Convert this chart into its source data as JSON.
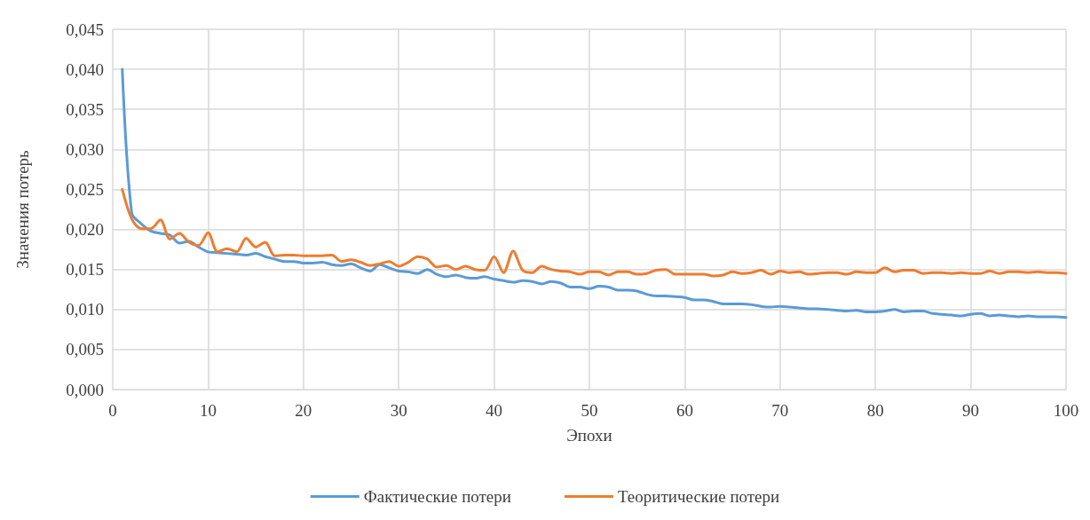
{
  "chart_data": {
    "type": "line",
    "xlabel": "Эпохи",
    "ylabel": "Значения потерь",
    "x": [
      1,
      2,
      3,
      4,
      5,
      6,
      7,
      8,
      9,
      10,
      11,
      12,
      13,
      14,
      15,
      16,
      17,
      18,
      19,
      20,
      21,
      22,
      23,
      24,
      25,
      26,
      27,
      28,
      29,
      30,
      31,
      32,
      33,
      34,
      35,
      36,
      37,
      38,
      39,
      40,
      41,
      42,
      43,
      44,
      45,
      46,
      47,
      48,
      49,
      50,
      51,
      52,
      53,
      54,
      55,
      56,
      57,
      58,
      59,
      60,
      61,
      62,
      63,
      64,
      65,
      66,
      67,
      68,
      69,
      70,
      71,
      72,
      73,
      74,
      75,
      76,
      77,
      78,
      79,
      80,
      81,
      82,
      83,
      84,
      85,
      86,
      87,
      88,
      89,
      90,
      91,
      92,
      93,
      94,
      95,
      96,
      97,
      98,
      99,
      100
    ],
    "series": [
      {
        "name": "Фактические потери",
        "color": "#5b9bd5",
        "values": [
          0.04,
          0.022,
          0.0207,
          0.0198,
          0.0195,
          0.0193,
          0.0183,
          0.0185,
          0.0178,
          0.0172,
          0.0171,
          0.017,
          0.0169,
          0.0168,
          0.017,
          0.0166,
          0.0163,
          0.016,
          0.016,
          0.0158,
          0.0158,
          0.0159,
          0.0156,
          0.0155,
          0.0157,
          0.0152,
          0.0148,
          0.0156,
          0.0152,
          0.0148,
          0.0147,
          0.0145,
          0.015,
          0.0144,
          0.0141,
          0.0143,
          0.014,
          0.0139,
          0.0141,
          0.0138,
          0.0136,
          0.0134,
          0.0136,
          0.0135,
          0.0132,
          0.0135,
          0.0133,
          0.0128,
          0.0128,
          0.0126,
          0.0129,
          0.0128,
          0.0124,
          0.0124,
          0.0123,
          0.0119,
          0.0117,
          0.0117,
          0.0116,
          0.0115,
          0.0112,
          0.0112,
          0.011,
          0.0107,
          0.0107,
          0.0107,
          0.0106,
          0.0104,
          0.0103,
          0.0104,
          0.0103,
          0.0102,
          0.0101,
          0.0101,
          0.01,
          0.0099,
          0.0098,
          0.0099,
          0.0097,
          0.0097,
          0.0098,
          0.01,
          0.0097,
          0.0098,
          0.0098,
          0.0095,
          0.0094,
          0.0093,
          0.0092,
          0.0094,
          0.0095,
          0.0092,
          0.0093,
          0.0092,
          0.0091,
          0.0092,
          0.0091,
          0.0091,
          0.0091,
          0.009
        ]
      },
      {
        "name": "Теоритические потери",
        "color": "#ed7d31",
        "values": [
          0.025,
          0.0213,
          0.0201,
          0.0201,
          0.0212,
          0.0188,
          0.0195,
          0.0184,
          0.018,
          0.0196,
          0.0172,
          0.0176,
          0.0172,
          0.0189,
          0.0178,
          0.0184,
          0.0167,
          0.0168,
          0.0168,
          0.0167,
          0.0167,
          0.0167,
          0.0168,
          0.016,
          0.0162,
          0.0159,
          0.0155,
          0.0157,
          0.016,
          0.0154,
          0.0159,
          0.0166,
          0.0163,
          0.0153,
          0.0155,
          0.015,
          0.0154,
          0.015,
          0.0149,
          0.0166,
          0.0146,
          0.0173,
          0.0149,
          0.0146,
          0.0154,
          0.015,
          0.0148,
          0.0147,
          0.0144,
          0.0147,
          0.0147,
          0.0143,
          0.0147,
          0.0147,
          0.0144,
          0.0145,
          0.0149,
          0.015,
          0.0144,
          0.0144,
          0.0144,
          0.0144,
          0.0142,
          0.0143,
          0.0147,
          0.0145,
          0.0146,
          0.0149,
          0.0144,
          0.0148,
          0.0146,
          0.0147,
          0.0144,
          0.0145,
          0.0146,
          0.0146,
          0.0144,
          0.0147,
          0.0146,
          0.0146,
          0.0152,
          0.0147,
          0.0149,
          0.0149,
          0.0145,
          0.0146,
          0.0146,
          0.0145,
          0.0146,
          0.0145,
          0.0145,
          0.0148,
          0.0145,
          0.0147,
          0.0147,
          0.0146,
          0.0147,
          0.0146,
          0.0146,
          0.0145
        ]
      }
    ],
    "xlim": [
      0,
      100
    ],
    "xticks": [
      0,
      10,
      20,
      30,
      40,
      50,
      60,
      70,
      80,
      90,
      100
    ],
    "ylim": [
      0,
      0.045
    ],
    "yticks": [
      {
        "value": 0,
        "label": "0,000"
      },
      {
        "value": 0.005,
        "label": "0,005"
      },
      {
        "value": 0.01,
        "label": "0,010"
      },
      {
        "value": 0.015,
        "label": "0,015"
      },
      {
        "value": 0.02,
        "label": "0,020"
      },
      {
        "value": 0.025,
        "label": "0,025"
      },
      {
        "value": 0.03,
        "label": "0,030"
      },
      {
        "value": 0.035,
        "label": "0,035"
      },
      {
        "value": 0.04,
        "label": "0,040"
      },
      {
        "value": 0.045,
        "label": "0,045"
      }
    ],
    "grid": true,
    "legend": "bottom",
    "marker": "none",
    "line_style": "solid"
  }
}
